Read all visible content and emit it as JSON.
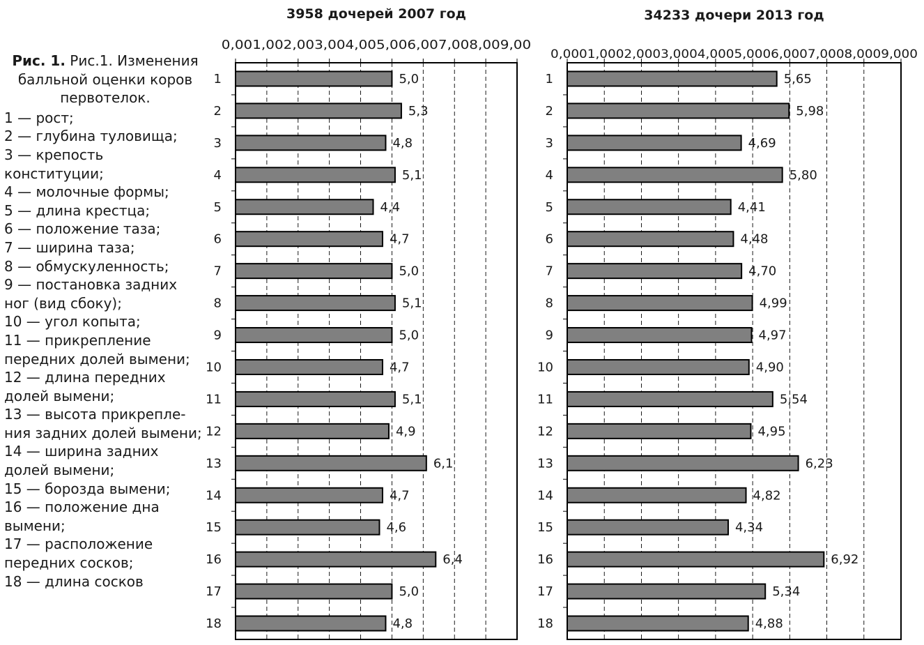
{
  "figure": {
    "caption_bold": "Рис. 1.",
    "caption_text": " Рис.1. Изменения балльной оценки коров первотелок.",
    "legend_items": [
      "1 — рост;",
      "2 — глубина туловища;",
      "3 — крепость конституции;",
      "4 — молочные формы;",
      "5 — длина крестца;",
      "6 — положение таза;",
      "7 — ширина таза;",
      "8 — обмускуленность;",
      "9 — постановка задних ног (вид сбоку);",
      "10 — угол копыта;",
      "11 — прикрепление передних долей вымени;",
      "12 — длина передних долей вымени;",
      "13 — высота прикрепле-ния задних долей вымени;",
      "14 — ширина задних долей вымени;",
      "15 — борозда вымени;",
      "16 — положение дна вымени;",
      "17 — расположение передних сосков;",
      "18 — длина сосков"
    ]
  },
  "colors": {
    "bar_fill": "#808080",
    "bar_stroke": "#000000",
    "grid": "#000000",
    "text": "#1a1a1a"
  },
  "chart_data": [
    {
      "type": "bar",
      "orientation": "horizontal",
      "title": "3958 дочерей  2007 год",
      "categories": [
        "1",
        "2",
        "3",
        "4",
        "5",
        "6",
        "7",
        "8",
        "9",
        "10",
        "11",
        "12",
        "13",
        "14",
        "15",
        "16",
        "17",
        "18"
      ],
      "values": [
        5.0,
        5.3,
        4.8,
        5.1,
        4.4,
        4.7,
        5.0,
        5.1,
        5.0,
        4.7,
        5.1,
        4.9,
        6.1,
        4.7,
        4.6,
        6.4,
        5.0,
        4.8
      ],
      "value_labels": [
        "5,0",
        "5,3",
        "4,8",
        "5,1",
        "4,4",
        "4,7",
        "5,0",
        "5,1",
        "5,0",
        "4,7",
        "5,1",
        "4,9",
        "6,1",
        "4,7",
        "4,6",
        "6,4",
        "5,0",
        "4,8"
      ],
      "xlim": [
        0,
        9
      ],
      "tick_labels": [
        "0,00",
        "1,00",
        "2,00",
        "3,00",
        "4,00",
        "5,00",
        "6,00",
        "7,00",
        "8,00",
        "9,00"
      ],
      "axis_position": "top",
      "grid": "dashed vertical"
    },
    {
      "type": "bar",
      "orientation": "horizontal",
      "title": "34233 дочери 2013 год",
      "categories": [
        "1",
        "2",
        "3",
        "4",
        "5",
        "6",
        "7",
        "8",
        "9",
        "10",
        "11",
        "12",
        "13",
        "14",
        "15",
        "16",
        "17",
        "18"
      ],
      "values": [
        5.65,
        5.98,
        4.69,
        5.8,
        4.41,
        4.48,
        4.7,
        4.99,
        4.97,
        4.9,
        5.54,
        4.95,
        6.23,
        4.82,
        4.34,
        6.92,
        5.34,
        4.88
      ],
      "value_labels": [
        "5,65",
        "5,98",
        "4,69",
        "5,80",
        "4,41",
        "4,48",
        "4,70",
        "4,99",
        "4,97",
        "4,90",
        "5,54",
        "4,95",
        "6,23",
        "4,82",
        "4,34",
        "6,92",
        "5,34",
        "4,88"
      ],
      "xlim": [
        0,
        9
      ],
      "tick_labels": [
        "0,000",
        "1,000",
        "2,000",
        "3,000",
        "4,000",
        "5,000",
        "6,000",
        "7,000",
        "8,000",
        "9,000"
      ],
      "axis_position": "top",
      "grid": "dashed vertical"
    }
  ]
}
